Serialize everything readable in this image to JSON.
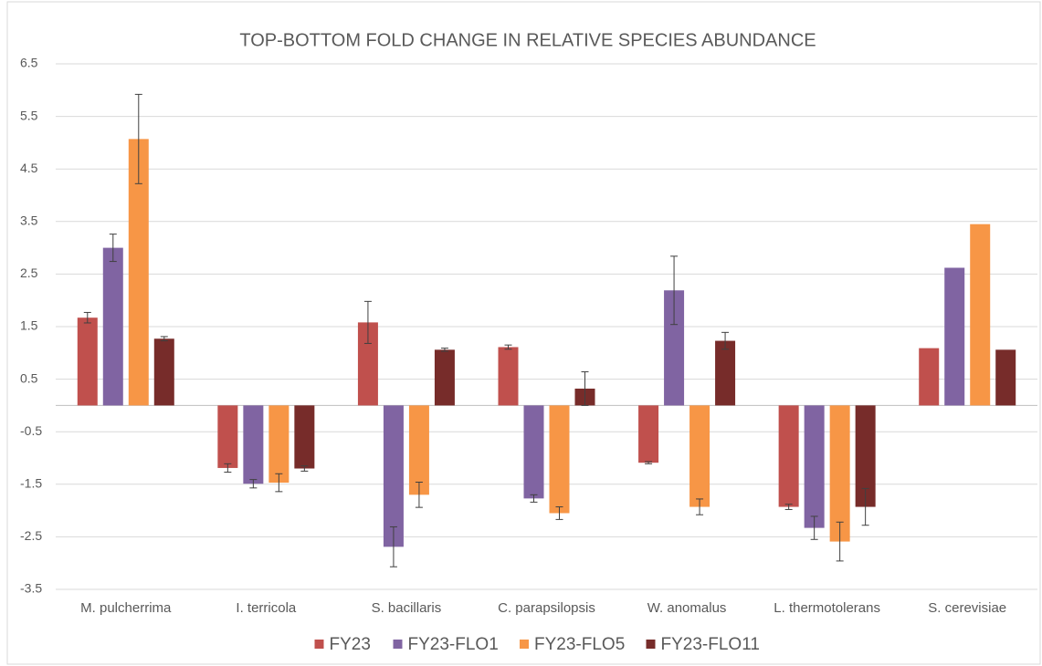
{
  "chart_data": {
    "type": "bar",
    "title": "TOP-BOTTOM FOLD CHANGE IN RELATIVE SPECIES ABUNDANCE",
    "categories": [
      "M. pulcherrima",
      "I. terricola",
      "S. bacillaris",
      "C. parapsilopsis",
      "W. anomalus",
      "L. thermotolerans",
      "S. cerevisiae"
    ],
    "series": [
      {
        "name": "FY23",
        "color": "#c0504d",
        "values": [
          1.67,
          -1.19,
          1.58,
          1.11,
          -1.09,
          -1.93,
          1.09
        ],
        "errors": [
          0.1,
          0.08,
          0.4,
          0.04,
          0.02,
          0.05,
          null
        ]
      },
      {
        "name": "FY23-FLO1",
        "color": "#8064a2",
        "values": [
          3.0,
          -1.49,
          -2.69,
          -1.77,
          2.19,
          -2.33,
          2.62
        ],
        "errors": [
          0.26,
          0.08,
          0.38,
          0.07,
          0.65,
          0.22,
          null
        ]
      },
      {
        "name": "FY23-FLO5",
        "color": "#f79646",
        "values": [
          5.07,
          -1.47,
          -1.7,
          -2.05,
          -1.93,
          -2.59,
          3.45
        ],
        "errors": [
          0.85,
          0.17,
          0.24,
          0.12,
          0.15,
          0.37,
          null
        ]
      },
      {
        "name": "FY23-FLO11",
        "color": "#772c2a",
        "values": [
          1.27,
          -1.2,
          1.06,
          0.32,
          1.23,
          -1.93,
          1.06
        ],
        "errors": [
          0.04,
          0.05,
          0.03,
          0.32,
          0.16,
          0.35,
          null
        ]
      }
    ],
    "ylim": [
      -3.5,
      6.5
    ],
    "yticks": [
      -3.5,
      -2.5,
      -1.5,
      -0.5,
      0.5,
      1.5,
      2.5,
      3.5,
      4.5,
      5.5,
      6.5
    ],
    "grid": true,
    "legend": "bottom"
  }
}
